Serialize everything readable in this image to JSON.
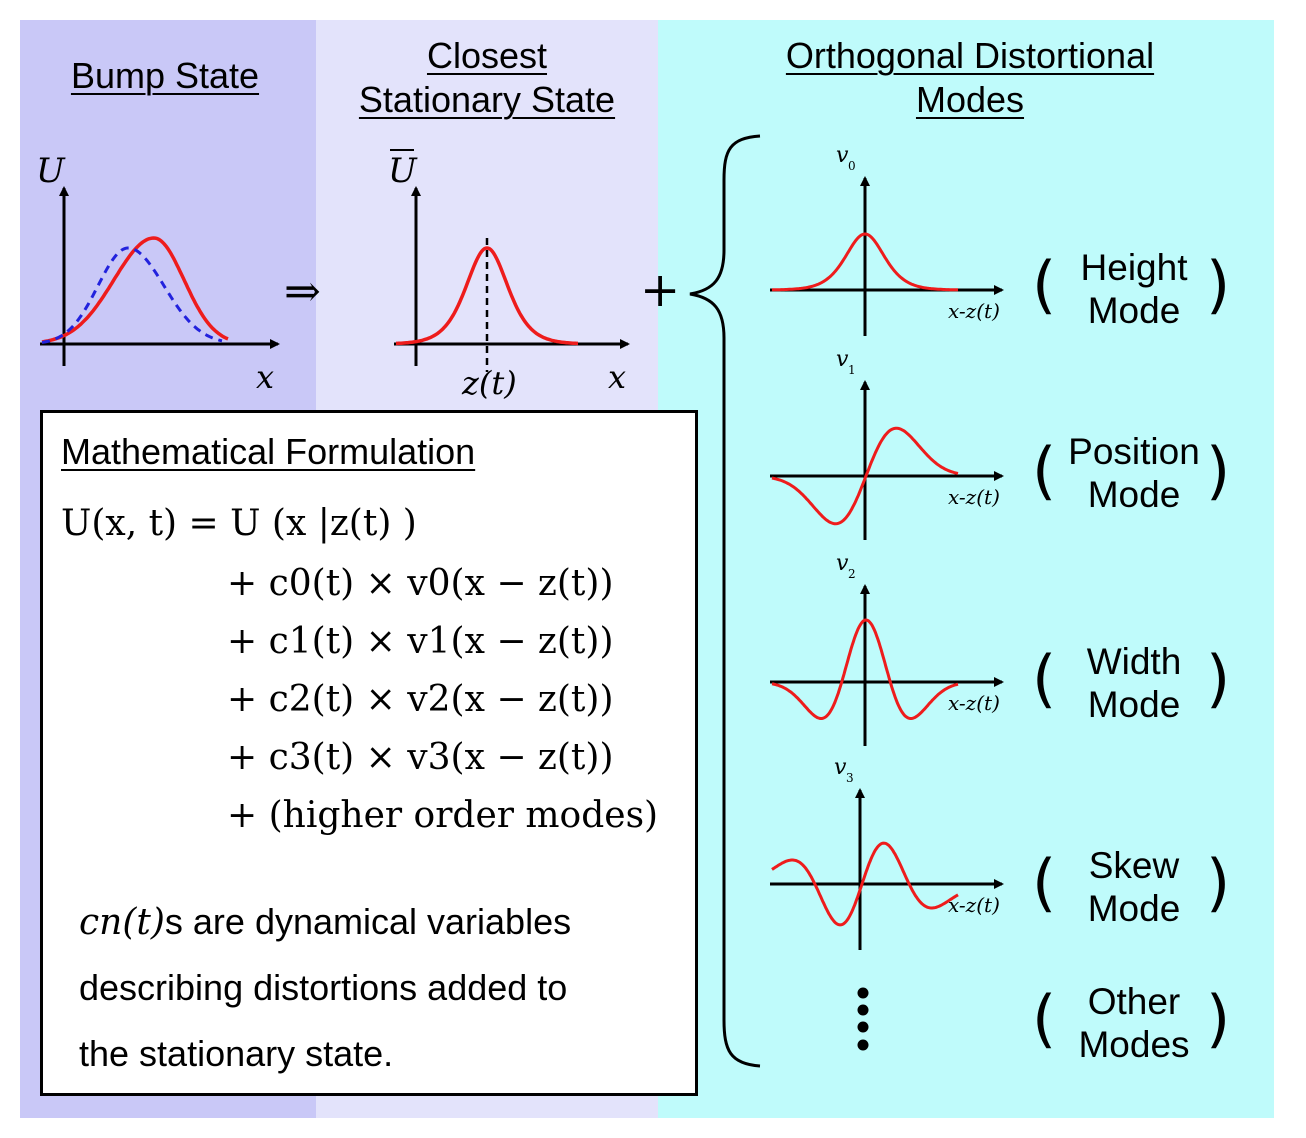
{
  "titles": {
    "bump_state": "Bump State",
    "closest_line1": "Closest",
    "closest_line2": "Stationary State",
    "orth_line1": "Orthogonal Distortional",
    "orth_line2": "Modes"
  },
  "plots": {
    "bump_y": "U",
    "bump_x": "x",
    "stationary_y": "U",
    "stationary_x": "x",
    "stationary_center": "z(t)",
    "implies": "⇒",
    "plus": "+"
  },
  "modes": [
    {
      "axis_label": "v",
      "subscript": "0",
      "x_label": "x-z(t)",
      "line1": "Height",
      "line2": "Mode"
    },
    {
      "axis_label": "v",
      "subscript": "1",
      "x_label": "x-z(t)",
      "line1": "Position",
      "line2": "Mode"
    },
    {
      "axis_label": "v",
      "subscript": "2",
      "x_label": "x-z(t)",
      "line1": "Width",
      "line2": "Mode"
    },
    {
      "axis_label": "v",
      "subscript": "3",
      "x_label": "x-z(t)",
      "line1": "Skew",
      "line2": "Mode"
    },
    {
      "line1": "Other",
      "line2": "Modes"
    }
  ],
  "formulation": {
    "title": "Mathematical Formulation",
    "eq0": "U(x, t) = U (x |z(t) )",
    "eq1": "+ c0(t) × v0(x − z(t))",
    "eq2": "+ c1(t) × v1(x − z(t))",
    "eq3": "+ c2(t) × v2(x − z(t))",
    "eq4": "+ c3(t) × v3(x − z(t))",
    "eq5": "+ (higher order modes)",
    "note_var": "cn(t)",
    "note_line1": "s are dynamical variables",
    "note_line2": "describing distortions added to",
    "note_line3": "the stationary state."
  },
  "colors": {
    "curve": "#ee1c1c",
    "dashed": "#2222dd",
    "panel1": "#c9c8f7",
    "panel2": "#e3e3fb",
    "panel3": "#bffbfb"
  }
}
